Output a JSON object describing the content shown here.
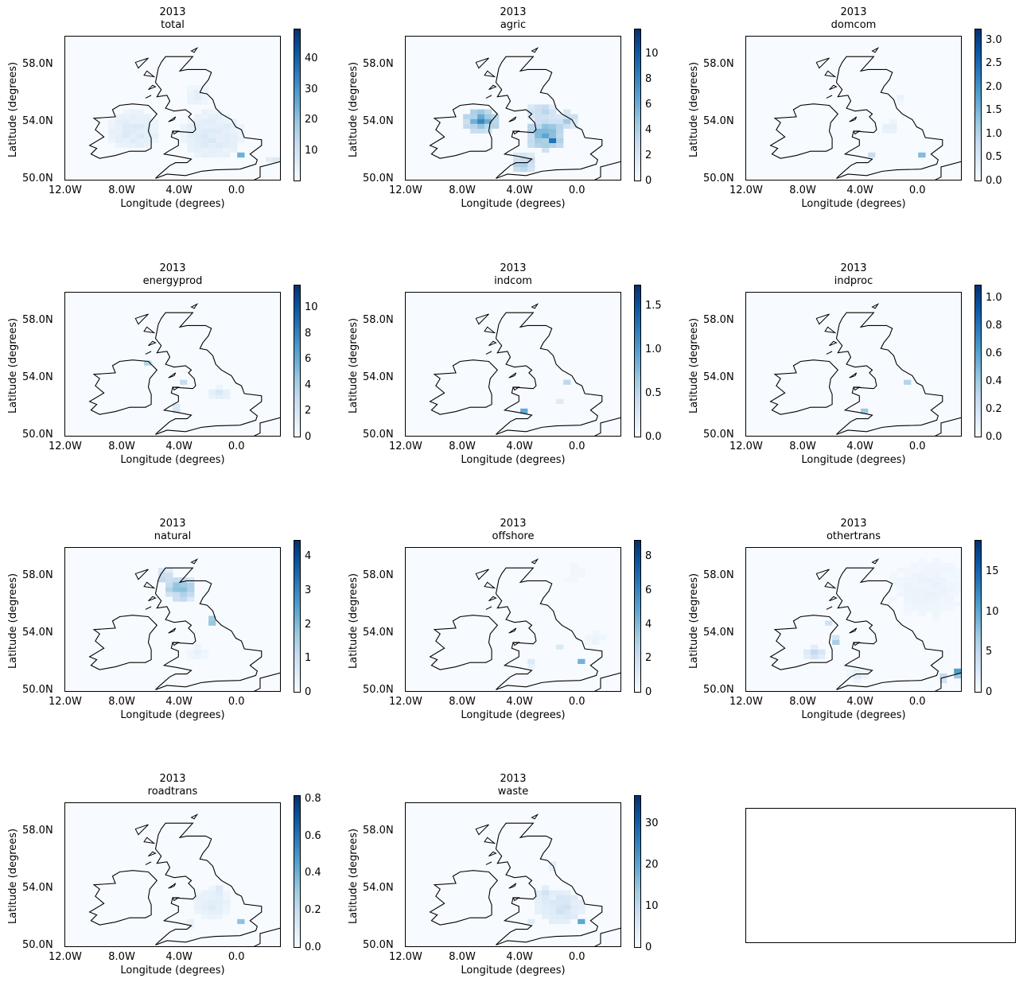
{
  "figure": {
    "xlabel": "Longitude (degrees)",
    "ylabel": "Latitude (degrees)",
    "xticks": [
      "12.0W",
      "8.0W",
      "4.0W",
      "0.0"
    ],
    "yticks": [
      "58.0N",
      "54.0N",
      "50.0N"
    ],
    "colormap": "Blues",
    "colors": {
      "low": "#f7fbff",
      "high": "#08306b",
      "coast": "#000000"
    }
  },
  "chart_data": [
    {
      "type": "heatmap",
      "title": "2013",
      "subtitle": "total",
      "xlabel": "Longitude (degrees)",
      "ylabel": "Latitude (degrees)",
      "colorbar_ticks": [
        "10",
        "20",
        "30",
        "40"
      ],
      "colorbar_range": [
        0,
        50
      ]
    },
    {
      "type": "heatmap",
      "title": "2013",
      "subtitle": "agric",
      "xlabel": "Longitude (degrees)",
      "ylabel": "Latitude (degrees)",
      "colorbar_ticks": [
        "0",
        "2",
        "4",
        "6",
        "8",
        "10"
      ],
      "colorbar_range": [
        0,
        12
      ]
    },
    {
      "type": "heatmap",
      "title": "2013",
      "subtitle": "domcom",
      "xlabel": "Longitude (degrees)",
      "ylabel": "Latitude (degrees)",
      "colorbar_ticks": [
        "0.0",
        "0.5",
        "1.0",
        "1.5",
        "2.0",
        "2.5",
        "3.0"
      ],
      "colorbar_range": [
        0,
        3.25
      ]
    },
    {
      "type": "heatmap",
      "title": "2013",
      "subtitle": "energyprod",
      "xlabel": "Longitude (degrees)",
      "ylabel": "Latitude (degrees)",
      "colorbar_ticks": [
        "0",
        "2",
        "4",
        "6",
        "8",
        "10"
      ],
      "colorbar_range": [
        0,
        11.8
      ]
    },
    {
      "type": "heatmap",
      "title": "2013",
      "subtitle": "indcom",
      "xlabel": "Longitude (degrees)",
      "ylabel": "Latitude (degrees)",
      "colorbar_ticks": [
        "0.0",
        "0.5",
        "1.0",
        "1.5"
      ],
      "colorbar_range": [
        0,
        1.75
      ]
    },
    {
      "type": "heatmap",
      "title": "2013",
      "subtitle": "indproc",
      "xlabel": "Longitude (degrees)",
      "ylabel": "Latitude (degrees)",
      "colorbar_ticks": [
        "0.0",
        "0.2",
        "0.4",
        "0.6",
        "0.8",
        "1.0"
      ],
      "colorbar_range": [
        0,
        1.1
      ]
    },
    {
      "type": "heatmap",
      "title": "2013",
      "subtitle": "natural",
      "xlabel": "Longitude (degrees)",
      "ylabel": "Latitude (degrees)",
      "colorbar_ticks": [
        "0",
        "1",
        "2",
        "3",
        "4"
      ],
      "colorbar_range": [
        0,
        4.5
      ]
    },
    {
      "type": "heatmap",
      "title": "2013",
      "subtitle": "offshore",
      "xlabel": "Longitude (degrees)",
      "ylabel": "Latitude (degrees)",
      "colorbar_ticks": [
        "0",
        "2",
        "4",
        "6",
        "8"
      ],
      "colorbar_range": [
        0,
        9
      ]
    },
    {
      "type": "heatmap",
      "title": "2013",
      "subtitle": "othertrans",
      "xlabel": "Longitude (degrees)",
      "ylabel": "Latitude (degrees)",
      "colorbar_ticks": [
        "0",
        "5",
        "10",
        "15"
      ],
      "colorbar_range": [
        0,
        19
      ]
    },
    {
      "type": "heatmap",
      "title": "2013",
      "subtitle": "roadtrans",
      "xlabel": "Longitude (degrees)",
      "ylabel": "Latitude (degrees)",
      "colorbar_ticks": [
        "0.0",
        "0.2",
        "0.4",
        "0.6",
        "0.8"
      ],
      "colorbar_range": [
        0,
        0.82
      ]
    },
    {
      "type": "heatmap",
      "title": "2013",
      "subtitle": "waste",
      "xlabel": "Longitude (degrees)",
      "ylabel": "Latitude (degrees)",
      "colorbar_ticks": [
        "0",
        "10",
        "20",
        "30"
      ],
      "colorbar_range": [
        0,
        37
      ]
    }
  ]
}
